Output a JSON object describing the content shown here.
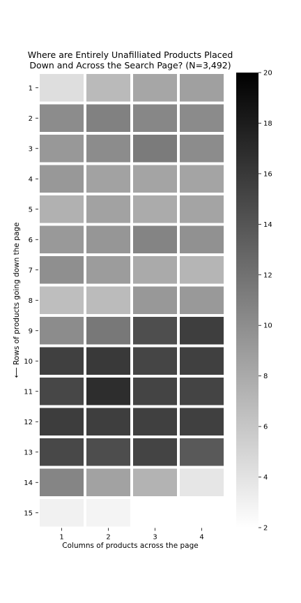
{
  "chart_data": {
    "type": "heatmap",
    "title": "Where are Entirely Unafilliated Products Placed\nDown and Across the Search Page? (N=3,492)",
    "xlabel": "Columns of products across the page",
    "ylabel": "⟵ Rows of products going down the page",
    "x_categories": [
      "1",
      "2",
      "3",
      "4"
    ],
    "y_categories": [
      "1",
      "2",
      "3",
      "4",
      "5",
      "6",
      "7",
      "8",
      "9",
      "10",
      "11",
      "12",
      "13",
      "14",
      "15"
    ],
    "values": [
      [
        4.3,
        6.9,
        8.3,
        8.7
      ],
      [
        10.1,
        10.9,
        10.5,
        10.2
      ],
      [
        9.3,
        10.1,
        11.3,
        10.1
      ],
      [
        9.3,
        8.6,
        8.4,
        8.4
      ],
      [
        7.5,
        8.6,
        7.9,
        8.4
      ],
      [
        9.2,
        9.4,
        10.7,
        9.8
      ],
      [
        9.9,
        9.0,
        8.0,
        7.2
      ],
      [
        6.6,
        6.8,
        9.3,
        9.2
      ],
      [
        10.1,
        11.5,
        14.5,
        15.6
      ],
      [
        15.5,
        16.0,
        15.1,
        15.5
      ],
      [
        15.0,
        16.8,
        15.2,
        15.2
      ],
      [
        15.7,
        15.6,
        15.5,
        15.5
      ],
      [
        14.9,
        14.6,
        15.2,
        13.7
      ],
      [
        10.6,
        8.6,
        7.4,
        3.8
      ],
      [
        3.0,
        2.8,
        null,
        null
      ]
    ],
    "colorbar": {
      "min": 2,
      "max": 20,
      "ticks": [
        "2",
        "4",
        "6",
        "8",
        "10",
        "12",
        "14",
        "16",
        "18",
        "20"
      ],
      "colormap": "Greys",
      "low_color": "#ffffff",
      "high_color": "#000000"
    },
    "grid": false,
    "cell_separator_color": "#ffffff"
  }
}
